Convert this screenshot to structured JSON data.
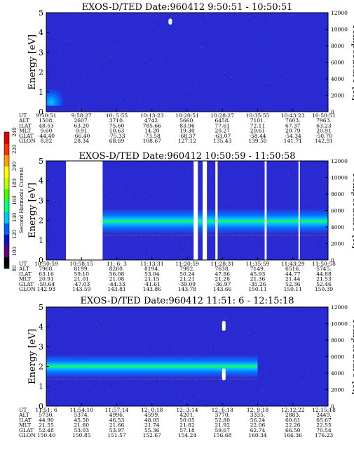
{
  "page": {
    "background": "#ffffff"
  },
  "colors": {
    "background_level": "#2a2ad2",
    "noise_level": "#3a3aef",
    "band_core": "#20ff40",
    "band_mid": "#00c8ff",
    "band_edge": "#0a6cff",
    "data_gap": "#ffffff",
    "dot_trace": "#b05050"
  },
  "colorbar": {
    "label": "Second Harmonic Current",
    "ticks": [
      "80",
      "100",
      "120",
      "140",
      "160",
      "180",
      "200",
      "220",
      "240"
    ],
    "colors": [
      "#000000",
      "#600080",
      "#1010c0",
      "#0060ff",
      "#00c8ff",
      "#00ff80",
      "#40ff00",
      "#c0ff00",
      "#ffff00",
      "#ffa000",
      "#ff3000",
      "#e00000"
    ]
  },
  "row_labels": [
    "UT",
    "ALT",
    "ILAT",
    "MLT",
    "GLAT",
    "GLON"
  ],
  "chart_data": [
    {
      "type": "heatmap",
      "title": "EXOS-D/TED   Date:960412   9:50:51 - 10:50:51",
      "ylabel": "Energy [eV]",
      "y2label": "Temperature [K]",
      "yticks": [
        "0",
        "1",
        "2",
        "3",
        "4",
        "5"
      ],
      "ylim": [
        0,
        5
      ],
      "y2ticks": [
        "0",
        "2000",
        "4000",
        "6000",
        "8000",
        "10000",
        "12000"
      ],
      "y2lim": [
        0,
        12000
      ],
      "grid": false,
      "columns": [
        [
          "9:50:51",
          "1508.",
          "48.53",
          "9.60",
          "-44.40",
          "8.82"
        ],
        [
          "9:58:27",
          "2607.",
          "63.20",
          "9.91",
          "-66.40",
          "28.34"
        ],
        [
          "10: 5:55",
          "3710.",
          "75.60",
          "10.63",
          "-75.33",
          "68.69"
        ],
        [
          "10:13:23",
          "4742.",
          "785.66",
          "14.20",
          "-73.58",
          "108.67"
        ],
        [
          "10:20:51",
          "5660.",
          "83.96",
          "19.30",
          "-68.37",
          "127.12"
        ],
        [
          "10:28:27",
          "6458.",
          "77.61",
          "20.27",
          "-63.07",
          "135.43"
        ],
        [
          "10:35:55",
          "7101.",
          "72.11",
          "20.61",
          "-58.44",
          "139.50"
        ],
        [
          "10:43:23",
          "7603.",
          "67.37",
          "20.79",
          "-54.34",
          "141.71"
        ],
        [
          "10:50:51",
          "7963.",
          "63.23",
          "20.91",
          "-50.70",
          "142.91"
        ]
      ],
      "band": {
        "description": "enhanced flux only near start",
        "energy_ev": [
          0.3,
          1.2
        ],
        "time_fraction": [
          0.0,
          0.06
        ]
      },
      "spikes": [
        {
          "time_fraction": 0.44,
          "energy_ev": [
            4.4,
            4.7
          ]
        }
      ]
    },
    {
      "type": "heatmap",
      "title": "EXOS-D/TED   Date:960412   10:50:59 - 11:50:58",
      "ylabel": "Energy [eV]",
      "y2label": "Temperature [K]",
      "yticks": [
        "0",
        "1",
        "2",
        "3",
        "4",
        "5"
      ],
      "ylim": [
        0,
        5
      ],
      "y2ticks": [
        "0",
        "2000",
        "4000",
        "6000",
        "8000",
        "10000",
        "12000"
      ],
      "y2lim": [
        0,
        12000
      ],
      "grid": false,
      "columns": [
        [
          "10:50:59",
          "7968.",
          "63.16",
          "20.91",
          "-50.64",
          "142.93"
        ],
        [
          "10:58:15",
          "8199.",
          "59.10",
          "21.01",
          "-47.03",
          "143.59"
        ],
        [
          "11: 6: 3",
          "8260.",
          "56.08",
          "21.08",
          "-44.33",
          "143.81"
        ],
        [
          "11:13:31",
          "8194.",
          "53.04",
          "21.15",
          "-41.61",
          "143.86"
        ],
        [
          "11:20:59",
          "7982.",
          "50.24",
          "21.21",
          "-39.09",
          "143.78"
        ],
        [
          "11:28:31",
          "7638.",
          "47.86",
          "21.28",
          "-36.97",
          "143.66"
        ],
        [
          "11:35:59",
          "7149.",
          "45.93",
          "21.36",
          "-35.26",
          "150.11"
        ],
        [
          "11:43:29",
          "6516.",
          "44.77",
          "21.44",
          "52.36",
          "150.11"
        ],
        [
          "11:50:58",
          "5745.",
          "44.88",
          "21.53",
          "52.46",
          "150.39"
        ]
      ],
      "band": {
        "description": "peak flux around 2 eV",
        "energy_ev": [
          1.3,
          2.6
        ],
        "peak_ev": 2.0,
        "time_fraction": [
          0.15,
          1.0
        ]
      },
      "gaps": [
        [
          0.07,
          0.2
        ],
        [
          0.523,
          0.538
        ],
        [
          0.555,
          0.57
        ],
        [
          0.6,
          0.608
        ],
        [
          0.775,
          0.782
        ],
        [
          0.895,
          0.9
        ]
      ]
    },
    {
      "type": "heatmap",
      "title": "EXOS-D/TED   Date:960412   11:51: 6 - 12:15:18",
      "ylabel": "Energy [eV]",
      "y2label": "Temperature [K]",
      "yticks": [
        "0",
        "1",
        "2",
        "3",
        "4",
        "5"
      ],
      "ylim": [
        0,
        5
      ],
      "y2ticks": [
        "0",
        "2000",
        "4000",
        "6000",
        "8000",
        "10000",
        "12000"
      ],
      "y2lim": [
        0,
        12000
      ],
      "grid": false,
      "columns": [
        [
          "11:51: 6",
          "5730.",
          "44.90",
          "21.55",
          "52.48",
          "150.40"
        ],
        [
          "11:54:10",
          "5374.",
          "45.50",
          "21.60",
          "53.03",
          "150.85"
        ],
        [
          "11:57:14",
          "4996.",
          "46.53",
          "21.66",
          "53.97",
          "151.57"
        ],
        [
          "12: 0:18",
          "4599.",
          "48.05",
          "21.74",
          "55.36",
          "152.67"
        ],
        [
          "12: 3:14",
          "4201.",
          "50.05",
          "21.82",
          "57.18",
          "154.24"
        ],
        [
          "12: 6:18",
          "3770.",
          "52.80",
          "21.92",
          "59.67",
          "156.68"
        ],
        [
          "12: 9:18",
          "3335.",
          "56.24",
          "22.06",
          "62.74",
          "160.34"
        ],
        [
          "12:12:22",
          "2883.",
          "60.61",
          "22.26",
          "66.50",
          "166.36"
        ],
        [
          "12:15:18",
          "2449.",
          "65.67",
          "22.55",
          "70.54",
          "176.23"
        ]
      ],
      "band": {
        "description": "peak flux around 2 eV",
        "energy_ev": [
          1.4,
          2.6
        ],
        "peak_ev": 2.0,
        "time_fraction": [
          0.0,
          0.75
        ]
      },
      "spikes": [
        {
          "time_fraction": 0.63,
          "energy_ev": [
            3.8,
            4.3
          ]
        },
        {
          "time_fraction": 0.63,
          "energy_ev": [
            1.3,
            1.9
          ]
        }
      ]
    }
  ]
}
